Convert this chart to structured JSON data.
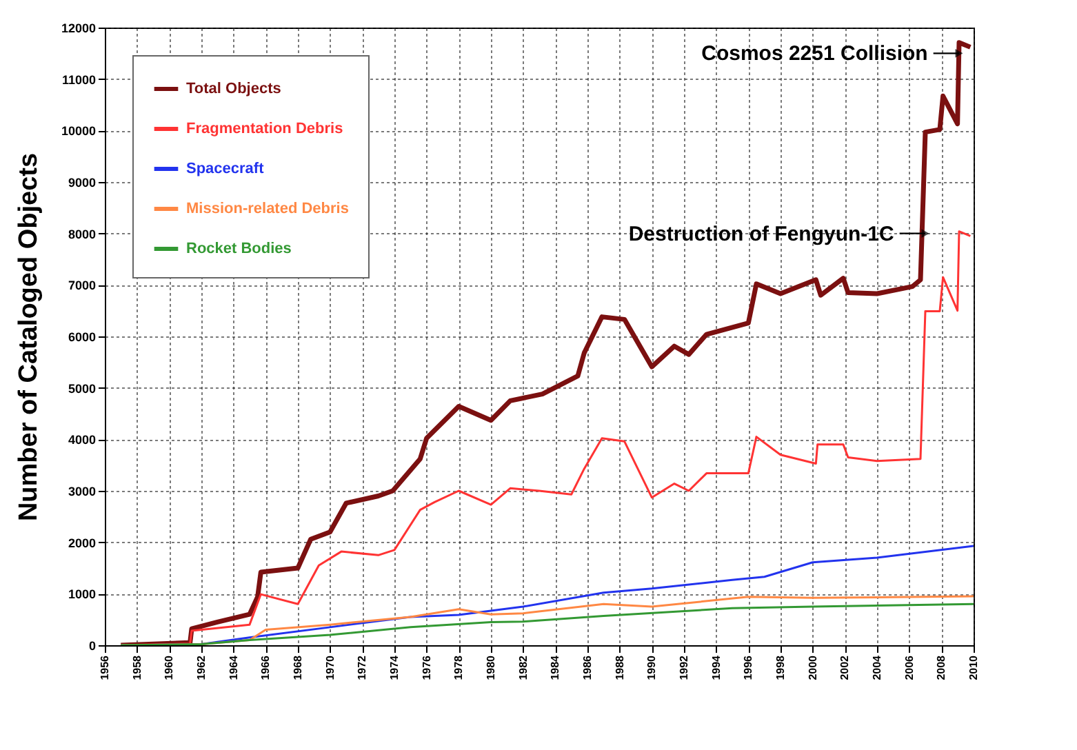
{
  "chart_data": {
    "type": "line",
    "ylabel": "Number of Cataloged Objects",
    "xlim": [
      1956,
      2010
    ],
    "xticks": [
      1956,
      1958,
      1960,
      1962,
      1964,
      1966,
      1968,
      1970,
      1972,
      1974,
      1976,
      1978,
      1980,
      1982,
      1984,
      1986,
      1988,
      1990,
      1992,
      1994,
      1996,
      1998,
      2000,
      2002,
      2004,
      2006,
      2008,
      2010
    ],
    "ylim": [
      0,
      12000
    ],
    "yticks": [
      0,
      1000,
      2000,
      3000,
      4000,
      5000,
      6000,
      7000,
      8000,
      9000,
      10000,
      11000,
      12000
    ],
    "grid": true,
    "legend": "top left",
    "series": [
      {
        "name": "Total Objects",
        "color": "#7b1010",
        "x": [
          1957,
          1961.3,
          1961.4,
          1963,
          1965,
          1965.5,
          1965.7,
          1968,
          1968.8,
          1970,
          1971,
          1973,
          1973.9,
          1975.6,
          1976,
          1978,
          1980,
          1981.2,
          1983.2,
          1985.4,
          1985.8,
          1986.9,
          1988.3,
          1990,
          1991.4,
          1992.3,
          1993.4,
          1996,
          1996.5,
          1998,
          2000.2,
          2000.5,
          2001.9,
          2002.2,
          2004,
          2006.2,
          2006.7,
          2007,
          2007.9,
          2008.1,
          2009,
          2009.1,
          2009.8
        ],
        "values": [
          0,
          50,
          320,
          450,
          600,
          940,
          1420,
          1500,
          2060,
          2200,
          2760,
          2900,
          3000,
          3620,
          4020,
          4640,
          4370,
          4750,
          4880,
          5230,
          5680,
          6380,
          6330,
          5410,
          5810,
          5650,
          6040,
          6260,
          7020,
          6830,
          7100,
          6800,
          7130,
          6850,
          6830,
          6970,
          7100,
          9970,
          10020,
          10670,
          10130,
          11710,
          11620
        ]
      },
      {
        "name": "Fragmentation Debris",
        "color": "#ff3333",
        "x": [
          1957,
          1961.3,
          1961.4,
          1965,
          1965.7,
          1968,
          1969.3,
          1970.7,
          1973,
          1974,
          1975.6,
          1976.5,
          1978,
          1980,
          1981.2,
          1983,
          1985,
          1985.8,
          1986.9,
          1988.3,
          1990,
          1991.4,
          1992.3,
          1993.4,
          1996,
          1996.5,
          1998,
          2000.2,
          2000.3,
          2001.9,
          2002.2,
          2004,
          2006.7,
          2007,
          2007.9,
          2008.1,
          2009,
          2009.1,
          2009.8
        ],
        "values": [
          0,
          30,
          280,
          400,
          990,
          800,
          1550,
          1820,
          1750,
          1850,
          2630,
          2780,
          3000,
          2730,
          3050,
          3000,
          2930,
          3430,
          4020,
          3960,
          2870,
          3140,
          3000,
          3340,
          3340,
          4050,
          3700,
          3530,
          3900,
          3900,
          3650,
          3580,
          3620,
          6490,
          6490,
          7150,
          6500,
          8040,
          7950
        ]
      },
      {
        "name": "Spacecraft",
        "color": "#2233ee",
        "x": [
          1957,
          1962,
          1965,
          1970,
          1975,
          1978,
          1980,
          1982,
          1987,
          1990,
          1995,
          1997,
          2000,
          2004,
          2010
        ],
        "values": [
          0,
          20,
          150,
          350,
          550,
          590,
          670,
          750,
          1020,
          1100,
          1270,
          1330,
          1610,
          1700,
          1930
        ]
      },
      {
        "name": "Mission-related Debris",
        "color": "#ff8844",
        "x": [
          1957,
          1962,
          1965,
          1966,
          1970,
          1975,
          1978,
          1980,
          1982,
          1987,
          1990,
          1996,
          2000,
          2010
        ],
        "values": [
          0,
          20,
          100,
          300,
          400,
          550,
          700,
          600,
          620,
          800,
          750,
          940,
          920,
          950
        ]
      },
      {
        "name": "Rocket Bodies",
        "color": "#339933",
        "x": [
          1957,
          1962,
          1965,
          1970,
          1975,
          1980,
          1982,
          1987,
          1995,
          2000,
          2010
        ],
        "values": [
          0,
          20,
          100,
          200,
          350,
          450,
          460,
          570,
          720,
          750,
          800
        ]
      }
    ],
    "annotations": [
      {
        "text": "Cosmos 2251 Collision",
        "x": 2009.1,
        "y": 11500
      },
      {
        "text": "Destruction of Fengyun-1C",
        "x": 2007,
        "y": 8000
      }
    ]
  }
}
